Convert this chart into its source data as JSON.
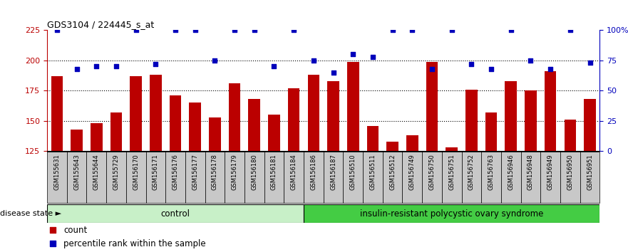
{
  "title": "GDS3104 / 224445_s_at",
  "categories": [
    "GSM155631",
    "GSM155643",
    "GSM155644",
    "GSM155729",
    "GSM156170",
    "GSM156171",
    "GSM156176",
    "GSM156177",
    "GSM156178",
    "GSM156179",
    "GSM156180",
    "GSM156181",
    "GSM156184",
    "GSM156186",
    "GSM156187",
    "GSM156510",
    "GSM156511",
    "GSM156512",
    "GSM156749",
    "GSM156750",
    "GSM156751",
    "GSM156752",
    "GSM156763",
    "GSM156946",
    "GSM156948",
    "GSM156949",
    "GSM156950",
    "GSM156951"
  ],
  "bar_values": [
    187,
    143,
    148,
    157,
    187,
    188,
    171,
    165,
    153,
    181,
    168,
    155,
    177,
    188,
    183,
    199,
    146,
    133,
    138,
    199,
    128,
    176,
    157,
    183,
    175,
    191,
    151,
    168
  ],
  "percentile_values": [
    100,
    68,
    70,
    70,
    100,
    72,
    100,
    100,
    75,
    100,
    100,
    70,
    100,
    75,
    65,
    80,
    78,
    100,
    100,
    68,
    100,
    72,
    68,
    100,
    75,
    68,
    100,
    73
  ],
  "control_count": 13,
  "bar_color": "#bb0000",
  "dot_color": "#0000bb",
  "ylim_left": [
    125,
    225
  ],
  "ylim_right": [
    0,
    100
  ],
  "yticks_left": [
    125,
    150,
    175,
    200,
    225
  ],
  "yticks_right": [
    0,
    25,
    50,
    75,
    100
  ],
  "ytick_right_labels": [
    "0",
    "25",
    "50",
    "75",
    "100%"
  ],
  "control_label": "control",
  "disease_label": "insulin-resistant polycystic ovary syndrome",
  "disease_state_label": "disease state",
  "legend_count": "count",
  "legend_pct": "percentile rank within the sample",
  "control_color": "#c8f0c8",
  "disease_color": "#44cc44",
  "xticklabel_bg": "#c8c8c8",
  "hline_vals": [
    150,
    175,
    200
  ],
  "figsize": [
    8.81,
    3.54
  ],
  "dpi": 100
}
